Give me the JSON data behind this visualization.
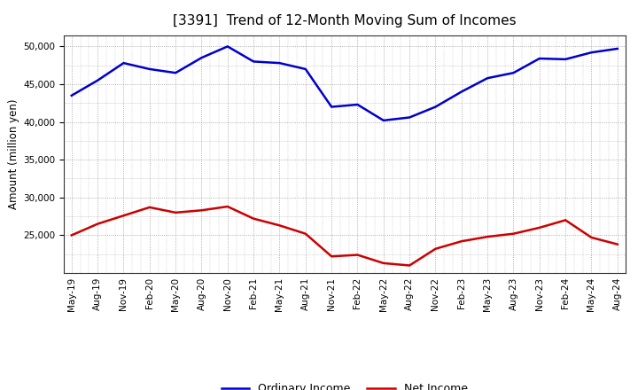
{
  "title": "[3391]  Trend of 12-Month Moving Sum of Incomes",
  "ylabel": "Amount (million yen)",
  "background_color": "#ffffff",
  "grid_color": "#999999",
  "line_color_ordinary": "#0000cc",
  "line_color_net": "#cc0000",
  "legend_ordinary": "Ordinary Income",
  "legend_net": "Net Income",
  "x_labels": [
    "May-19",
    "Aug-19",
    "Nov-19",
    "Feb-20",
    "May-20",
    "Aug-20",
    "Nov-20",
    "Feb-21",
    "May-21",
    "Aug-21",
    "Nov-21",
    "Feb-22",
    "May-22",
    "Aug-22",
    "Nov-22",
    "Feb-23",
    "May-23",
    "Aug-23",
    "Nov-23",
    "Feb-24",
    "May-24",
    "Aug-24"
  ],
  "ordinary_income": [
    43500,
    45500,
    47800,
    47000,
    46500,
    48500,
    50000,
    48000,
    47800,
    47000,
    42000,
    42300,
    40200,
    40600,
    42000,
    44000,
    45800,
    46500,
    48400,
    48300,
    49200,
    49700
  ],
  "net_income": [
    25000,
    26500,
    27600,
    28700,
    28000,
    28300,
    28800,
    27200,
    26300,
    25200,
    22200,
    22400,
    21300,
    21000,
    23200,
    24200,
    24800,
    25200,
    26000,
    27000,
    24700,
    23800
  ],
  "ylim_min": 20000,
  "ylim_max": 51500,
  "yticks": [
    25000,
    30000,
    35000,
    40000,
    45000,
    50000
  ],
  "title_fontsize": 11,
  "axis_fontsize": 8.5,
  "tick_fontsize": 7.5,
  "legend_fontsize": 9,
  "linewidth": 1.8
}
